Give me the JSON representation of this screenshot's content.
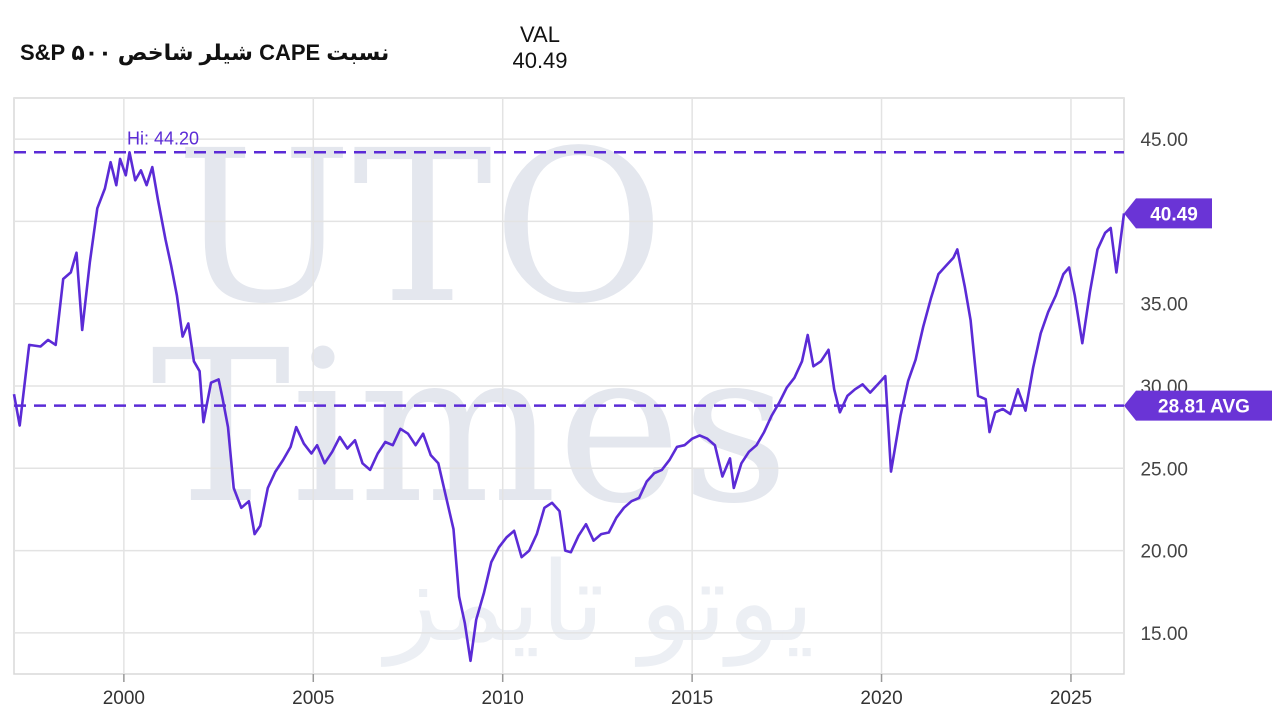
{
  "header": {
    "title": "نسبت CAPE شیلر شاخص ۵۰۰ S&P",
    "val_label": "VAL",
    "val_value": "40.49"
  },
  "watermark": {
    "line1": "UTO",
    "line2": "Times",
    "line3": "یوتو تایمز"
  },
  "colors": {
    "line": "#5b2bd6",
    "grid": "#e3e3e3",
    "axis_text": "#444444",
    "tag_bg": "#6a34d6"
  },
  "chart_data": {
    "type": "line",
    "title": "نسبت CAPE شیلر شاخص ۵۰۰ S&P",
    "xlim": [
      1997.1,
      2026.4
    ],
    "ylim": [
      12.5,
      47.5
    ],
    "y_ticks": [
      15,
      20,
      25,
      30,
      35,
      40,
      45
    ],
    "y_tick_labels": [
      "15.00",
      "20.00",
      "25.00",
      "30.00",
      "35.00",
      "",
      "45.00"
    ],
    "x_ticks": [
      2000,
      2005,
      2010,
      2015,
      2020,
      2025
    ],
    "x_tick_labels": [
      "2000",
      "2005",
      "2010",
      "2015",
      "2020",
      "2025"
    ],
    "high": {
      "value": 44.2,
      "label": "Hi: 44.20"
    },
    "average": {
      "value": 28.81,
      "label": "28.81 AVG"
    },
    "current": {
      "value": 40.49,
      "label": "40.49"
    },
    "series": [
      {
        "points": [
          [
            1997.1,
            29.5
          ],
          [
            1997.25,
            27.6
          ],
          [
            1997.5,
            32.5
          ],
          [
            1997.8,
            32.4
          ],
          [
            1998.0,
            32.8
          ],
          [
            1998.2,
            32.5
          ],
          [
            1998.4,
            36.5
          ],
          [
            1998.6,
            36.9
          ],
          [
            1998.75,
            38.1
          ],
          [
            1998.9,
            33.4
          ],
          [
            1999.1,
            37.5
          ],
          [
            1999.3,
            40.8
          ],
          [
            1999.5,
            42.0
          ],
          [
            1999.65,
            43.6
          ],
          [
            1999.8,
            42.2
          ],
          [
            1999.9,
            43.8
          ],
          [
            2000.05,
            42.8
          ],
          [
            2000.15,
            44.2
          ],
          [
            2000.3,
            42.5
          ],
          [
            2000.45,
            43.1
          ],
          [
            2000.6,
            42.2
          ],
          [
            2000.75,
            43.3
          ],
          [
            2000.9,
            41.3
          ],
          [
            2001.1,
            38.9
          ],
          [
            2001.25,
            37.3
          ],
          [
            2001.4,
            35.5
          ],
          [
            2001.55,
            33.0
          ],
          [
            2001.7,
            33.8
          ],
          [
            2001.85,
            31.5
          ],
          [
            2002.0,
            30.9
          ],
          [
            2002.1,
            27.8
          ],
          [
            2002.3,
            30.2
          ],
          [
            2002.5,
            30.4
          ],
          [
            2002.6,
            29.3
          ],
          [
            2002.75,
            27.5
          ],
          [
            2002.9,
            23.8
          ],
          [
            2003.1,
            22.6
          ],
          [
            2003.3,
            23.0
          ],
          [
            2003.45,
            21.0
          ],
          [
            2003.6,
            21.5
          ],
          [
            2003.8,
            23.8
          ],
          [
            2004.0,
            24.8
          ],
          [
            2004.2,
            25.5
          ],
          [
            2004.4,
            26.3
          ],
          [
            2004.55,
            27.5
          ],
          [
            2004.75,
            26.5
          ],
          [
            2004.95,
            25.9
          ],
          [
            2005.1,
            26.4
          ],
          [
            2005.3,
            25.3
          ],
          [
            2005.5,
            26.0
          ],
          [
            2005.7,
            26.9
          ],
          [
            2005.9,
            26.2
          ],
          [
            2006.1,
            26.7
          ],
          [
            2006.3,
            25.3
          ],
          [
            2006.5,
            24.9
          ],
          [
            2006.7,
            25.9
          ],
          [
            2006.9,
            26.6
          ],
          [
            2007.1,
            26.4
          ],
          [
            2007.3,
            27.4
          ],
          [
            2007.5,
            27.1
          ],
          [
            2007.7,
            26.4
          ],
          [
            2007.9,
            27.1
          ],
          [
            2008.1,
            25.8
          ],
          [
            2008.3,
            25.3
          ],
          [
            2008.5,
            23.3
          ],
          [
            2008.7,
            21.3
          ],
          [
            2008.85,
            17.2
          ],
          [
            2009.0,
            15.6
          ],
          [
            2009.15,
            13.3
          ],
          [
            2009.3,
            15.8
          ],
          [
            2009.5,
            17.4
          ],
          [
            2009.7,
            19.3
          ],
          [
            2009.9,
            20.2
          ],
          [
            2010.1,
            20.8
          ],
          [
            2010.3,
            21.2
          ],
          [
            2010.5,
            19.6
          ],
          [
            2010.7,
            20.0
          ],
          [
            2010.9,
            21.0
          ],
          [
            2011.1,
            22.6
          ],
          [
            2011.3,
            22.9
          ],
          [
            2011.5,
            22.4
          ],
          [
            2011.65,
            20.0
          ],
          [
            2011.8,
            19.9
          ],
          [
            2012.0,
            20.9
          ],
          [
            2012.2,
            21.6
          ],
          [
            2012.4,
            20.6
          ],
          [
            2012.6,
            21.0
          ],
          [
            2012.8,
            21.1
          ],
          [
            2013.0,
            22.0
          ],
          [
            2013.2,
            22.6
          ],
          [
            2013.4,
            23.0
          ],
          [
            2013.6,
            23.2
          ],
          [
            2013.8,
            24.2
          ],
          [
            2014.0,
            24.7
          ],
          [
            2014.2,
            24.9
          ],
          [
            2014.4,
            25.5
          ],
          [
            2014.6,
            26.3
          ],
          [
            2014.8,
            26.4
          ],
          [
            2015.0,
            26.8
          ],
          [
            2015.2,
            27.0
          ],
          [
            2015.4,
            26.8
          ],
          [
            2015.6,
            26.4
          ],
          [
            2015.8,
            24.5
          ],
          [
            2016.0,
            25.6
          ],
          [
            2016.1,
            23.8
          ],
          [
            2016.3,
            25.3
          ],
          [
            2016.5,
            26.0
          ],
          [
            2016.7,
            26.4
          ],
          [
            2016.9,
            27.2
          ],
          [
            2017.1,
            28.2
          ],
          [
            2017.3,
            29.0
          ],
          [
            2017.5,
            29.9
          ],
          [
            2017.7,
            30.5
          ],
          [
            2017.9,
            31.5
          ],
          [
            2018.05,
            33.1
          ],
          [
            2018.2,
            31.2
          ],
          [
            2018.4,
            31.5
          ],
          [
            2018.6,
            32.2
          ],
          [
            2018.75,
            29.8
          ],
          [
            2018.9,
            28.4
          ],
          [
            2019.1,
            29.4
          ],
          [
            2019.3,
            29.8
          ],
          [
            2019.5,
            30.1
          ],
          [
            2019.7,
            29.6
          ],
          [
            2019.9,
            30.1
          ],
          [
            2020.1,
            30.6
          ],
          [
            2020.25,
            24.8
          ],
          [
            2020.5,
            28.2
          ],
          [
            2020.7,
            30.3
          ],
          [
            2020.9,
            31.6
          ],
          [
            2021.1,
            33.6
          ],
          [
            2021.3,
            35.3
          ],
          [
            2021.5,
            36.8
          ],
          [
            2021.7,
            37.3
          ],
          [
            2021.9,
            37.8
          ],
          [
            2022.0,
            38.3
          ],
          [
            2022.2,
            36.0
          ],
          [
            2022.35,
            34.0
          ],
          [
            2022.55,
            29.4
          ],
          [
            2022.75,
            29.2
          ],
          [
            2022.85,
            27.2
          ],
          [
            2023.0,
            28.4
          ],
          [
            2023.2,
            28.6
          ],
          [
            2023.4,
            28.3
          ],
          [
            2023.6,
            29.8
          ],
          [
            2023.8,
            28.5
          ],
          [
            2024.0,
            31.1
          ],
          [
            2024.2,
            33.2
          ],
          [
            2024.4,
            34.5
          ],
          [
            2024.6,
            35.5
          ],
          [
            2024.8,
            36.8
          ],
          [
            2024.95,
            37.2
          ],
          [
            2025.1,
            35.5
          ],
          [
            2025.3,
            32.6
          ],
          [
            2025.5,
            35.7
          ],
          [
            2025.7,
            38.3
          ],
          [
            2025.9,
            39.3
          ],
          [
            2026.05,
            39.6
          ],
          [
            2026.2,
            36.9
          ],
          [
            2026.4,
            40.49
          ]
        ]
      }
    ]
  }
}
